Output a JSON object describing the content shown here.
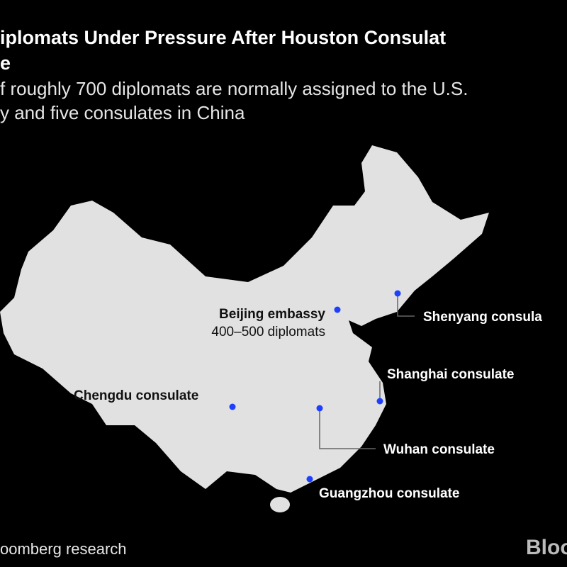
{
  "header": {
    "title_lines": [
      "iplomats Under Pressure After Houston Consulat",
      "e"
    ],
    "subtitle_lines": [
      "f roughly 700 diplomats are normally assigned to the U.S.",
      "y and five consulates in China"
    ]
  },
  "locations": [
    {
      "label": "Beijing embassy",
      "note": "400–500 diplomats"
    },
    {
      "label": "Shenyang consula"
    },
    {
      "label": "Shanghai consulate"
    },
    {
      "label": "Chengdu consulate"
    },
    {
      "label": "Wuhan consulate"
    },
    {
      "label": "Guangzhou consulate"
    }
  ],
  "footer": {
    "source": "oomberg research",
    "logo": "Bloo"
  }
}
